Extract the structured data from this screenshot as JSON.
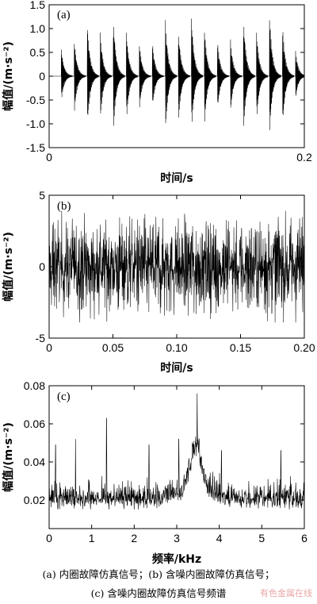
{
  "chart_data": [
    {
      "type": "line",
      "tag": "(a)",
      "xlabel": "时间/s",
      "ylabel": "幅值/(m·s⁻²)",
      "xlim": [
        0,
        0.2
      ],
      "ylim": [
        -1.5,
        1.5
      ],
      "xticks": [
        0,
        0.2
      ],
      "xtick_labels": [
        "0",
        "0.2"
      ],
      "yticks": [
        -1.5,
        -1.0,
        -0.5,
        0,
        0.5,
        1.0,
        1.5
      ],
      "ytick_labels": [
        "-1.5",
        "-1.0",
        "-0.5",
        "0",
        "0.5",
        "1.0",
        "1.5"
      ],
      "impulse_times": [
        0.0095,
        0.0197,
        0.0299,
        0.0401,
        0.0503,
        0.0605,
        0.0707,
        0.0809,
        0.0911,
        0.1013,
        0.1115,
        0.1217,
        0.1319,
        0.1421,
        0.1523,
        0.1625,
        0.1727,
        0.1829,
        0.1931
      ],
      "impulse_peaks": [
        0.6,
        0.78,
        1.15,
        0.95,
        1.25,
        0.98,
        0.72,
        0.75,
        1.22,
        1.0,
        1.3,
        1.05,
        0.78,
        0.8,
        1.25,
        0.98,
        1.35,
        1.1,
        0.55
      ],
      "impulse_troughs": [
        -0.55,
        -0.8,
        -1.1,
        -0.95,
        -1.2,
        -1.0,
        -0.72,
        -0.7,
        -1.2,
        -1.0,
        -1.2,
        -1.05,
        -0.75,
        -0.8,
        -1.2,
        -1.0,
        -1.25,
        -1.1,
        -0.5
      ]
    },
    {
      "type": "line",
      "tag": "(b)",
      "xlabel": "时间/s",
      "ylabel": "幅值/(m·s⁻²)",
      "xlim": [
        0,
        0.2
      ],
      "ylim": [
        -5,
        5
      ],
      "xticks": [
        0,
        0.05,
        0.1,
        0.15,
        0.2
      ],
      "xtick_labels": [
        "0",
        "0.05",
        "0.10",
        "0.15",
        "0.20"
      ],
      "yticks": [
        -5,
        0,
        5
      ],
      "ytick_labels": [
        "-5",
        "0",
        "5"
      ],
      "noise_amplitude": 3.0,
      "peak_envelope": 3.9
    },
    {
      "type": "line",
      "tag": "(c)",
      "xlabel": "频率/kHz",
      "ylabel": "幅值/(m·s⁻²)",
      "xlim": [
        0,
        6
      ],
      "ylim": [
        0.005,
        0.08
      ],
      "xticks": [
        0,
        1,
        2,
        3,
        4,
        5,
        6
      ],
      "xtick_labels": [
        "0",
        "1",
        "2",
        "3",
        "4",
        "5",
        "6"
      ],
      "yticks": [
        0.02,
        0.04,
        0.06,
        0.08
      ],
      "ytick_labels": [
        "0.02",
        "0.04",
        "0.06",
        "0.08"
      ],
      "baseline": 0.018,
      "spectral_peak": {
        "x": 3.48,
        "y": 0.076
      },
      "notable_peaks": [
        {
          "x": 0.15,
          "y": 0.049
        },
        {
          "x": 0.62,
          "y": 0.052
        },
        {
          "x": 1.35,
          "y": 0.063
        },
        {
          "x": 2.35,
          "y": 0.049
        },
        {
          "x": 3.05,
          "y": 0.052
        },
        {
          "x": 3.48,
          "y": 0.076
        },
        {
          "x": 4.05,
          "y": 0.046
        },
        {
          "x": 5.45,
          "y": 0.046
        }
      ]
    }
  ],
  "caption": {
    "line1": "(a) 内圈故障仿真信号；(b) 含噪内圈故障仿真信号；",
    "line2": "(c) 含噪内圈故障仿真信号频谱"
  },
  "watermark": "有色金属在线"
}
